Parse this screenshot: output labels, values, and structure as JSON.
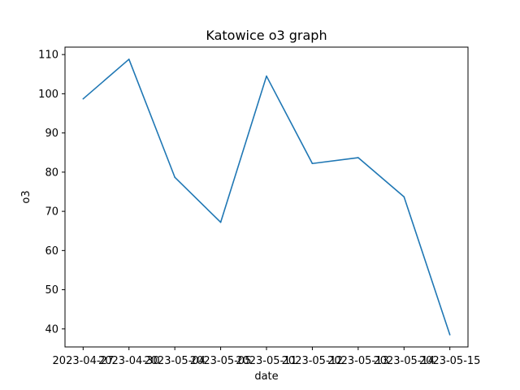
{
  "chart_data": {
    "type": "line",
    "title": "Katowice o3 graph",
    "xlabel": "date",
    "ylabel": "o3",
    "categories": [
      "2023-04-27",
      "2023-04-30",
      "2023-05-04",
      "2023-05-05",
      "2023-05-11",
      "2023-05-12",
      "2023-05-13",
      "2023-05-14",
      "2023-05-15"
    ],
    "x_tick_labels": [
      "2023-04-27",
      "2023-04-30",
      "2023-05-04",
      "2023-05-05",
      "2023-05-11",
      "2023-05-12",
      "2023-05-13",
      "2023-05-14",
      "2023-05-15"
    ],
    "values": [
      98.7,
      108.8,
      78.7,
      67.2,
      104.5,
      82.2,
      83.7,
      73.7,
      38.5
    ],
    "ylim": [
      35.4,
      111.9
    ],
    "y_ticks": [
      40,
      50,
      60,
      70,
      80,
      90,
      100,
      110
    ],
    "grid": false,
    "line_color": "#1f77b4"
  }
}
